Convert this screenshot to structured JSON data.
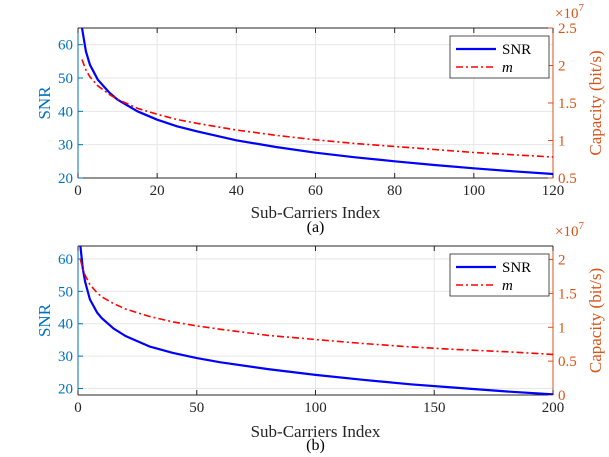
{
  "colors": {
    "snr": "#0000ff",
    "capacity": "#ff0000",
    "left_axis": "#0072bd",
    "right_axis": "#d95319",
    "grid": "#e6e6e6",
    "axis": "#262626"
  },
  "chart_data": [
    {
      "type": "line",
      "panel": "(a)",
      "caption": "(a)",
      "xlabel": "Sub-Carriers Index",
      "ylabel_left": "SNR",
      "ylabel_right": "Capacity (bit/s)",
      "right_exponent_base": "×10",
      "right_exponent_power": "7",
      "xlim": [
        0,
        120
      ],
      "ylim_left": [
        20,
        65
      ],
      "ylim_right": [
        0.5,
        2.5
      ],
      "x_ticks": [
        0,
        20,
        40,
        60,
        80,
        100,
        120
      ],
      "x_tick_labels": [
        "0",
        "20",
        "40",
        "60",
        "80",
        "100",
        "120"
      ],
      "y_left_ticks": [
        20,
        30,
        40,
        50,
        60
      ],
      "y_left_tick_labels": [
        "20",
        "30",
        "40",
        "50",
        "60"
      ],
      "y_right_ticks": [
        0.5,
        1,
        1.5,
        2,
        2.5
      ],
      "y_right_tick_labels": [
        "0.5",
        "1",
        "1.5",
        "2",
        "2.5"
      ],
      "grid": true,
      "legend_position": "top-right",
      "series": [
        {
          "name": "SNR",
          "axis": "left",
          "style": "solid",
          "x": [
            1,
            2,
            3,
            5,
            8,
            10,
            15,
            20,
            25,
            30,
            40,
            50,
            60,
            70,
            80,
            90,
            100,
            110,
            120
          ],
          "values": [
            65,
            58,
            54,
            49.5,
            45.5,
            43.5,
            40,
            37.5,
            35.5,
            34,
            31.3,
            29.3,
            27.6,
            26.2,
            25,
            23.9,
            22.9,
            22,
            21.2
          ]
        },
        {
          "name": "m",
          "axis": "right",
          "style": "dash-dot",
          "x": [
            1,
            2,
            3,
            5,
            8,
            10,
            15,
            20,
            25,
            30,
            40,
            50,
            60,
            70,
            80,
            90,
            100,
            110,
            120
          ],
          "values": [
            2.08,
            1.94,
            1.85,
            1.73,
            1.61,
            1.55,
            1.43,
            1.35,
            1.28,
            1.23,
            1.14,
            1.07,
            1.01,
            0.96,
            0.92,
            0.88,
            0.84,
            0.81,
            0.78
          ]
        }
      ]
    },
    {
      "type": "line",
      "panel": "(b)",
      "caption": "(b)",
      "xlabel": "Sub-Carriers Index",
      "ylabel_left": "SNR",
      "ylabel_right": "Capacity (bit/s)",
      "right_exponent_base": "×10",
      "right_exponent_power": "7",
      "xlim": [
        0,
        200
      ],
      "ylim_left": [
        18,
        64
      ],
      "ylim_right": [
        0,
        2.2
      ],
      "x_ticks": [
        0,
        50,
        100,
        150,
        200
      ],
      "x_tick_labels": [
        "0",
        "50",
        "100",
        "150",
        "200"
      ],
      "y_left_ticks": [
        20,
        30,
        40,
        50,
        60
      ],
      "y_left_tick_labels": [
        "20",
        "30",
        "40",
        "50",
        "60"
      ],
      "y_right_ticks": [
        0,
        0.5,
        1,
        1.5,
        2
      ],
      "y_right_tick_labels": [
        "0",
        "0.5",
        "1",
        "1.5",
        "2"
      ],
      "grid": true,
      "legend_position": "top-right",
      "series": [
        {
          "name": "SNR",
          "axis": "left",
          "style": "solid",
          "x": [
            1,
            2,
            3,
            5,
            8,
            10,
            15,
            20,
            30,
            40,
            50,
            60,
            80,
            100,
            120,
            140,
            160,
            180,
            200
          ],
          "values": [
            64,
            57,
            53,
            47.5,
            43.5,
            41.7,
            38.5,
            36.2,
            33,
            31,
            29.4,
            28.1,
            26,
            24.2,
            22.7,
            21.3,
            20.2,
            19.1,
            18.2
          ]
        },
        {
          "name": "m",
          "axis": "right",
          "style": "dash-dot",
          "x": [
            1,
            2,
            3,
            5,
            8,
            10,
            15,
            20,
            30,
            40,
            50,
            60,
            80,
            100,
            120,
            140,
            160,
            180,
            200
          ],
          "values": [
            2.0,
            1.86,
            1.77,
            1.63,
            1.51,
            1.45,
            1.35,
            1.27,
            1.16,
            1.08,
            1.02,
            0.97,
            0.88,
            0.82,
            0.76,
            0.71,
            0.67,
            0.64,
            0.6
          ]
        }
      ]
    }
  ]
}
